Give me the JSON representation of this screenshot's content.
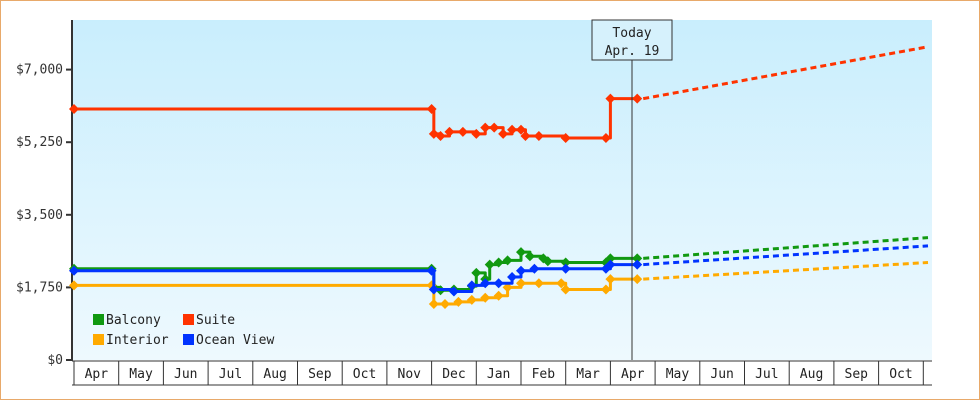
{
  "chart_data": {
    "type": "line",
    "title": "",
    "xlabel": "",
    "ylabel": "",
    "ylim": [
      0,
      8200
    ],
    "y_ticks": [
      "$0",
      "$1,750",
      "$3,500",
      "$5,250",
      "$7,000"
    ],
    "y_tick_values": [
      0,
      1750,
      3500,
      5250,
      7000
    ],
    "x_ticks": [
      "Apr",
      "May",
      "Jun",
      "Jul",
      "Aug",
      "Sep",
      "Oct",
      "Nov",
      "Dec",
      "Jan",
      "Feb",
      "Mar",
      "Apr",
      "May",
      "Jun",
      "Jul",
      "Aug",
      "Sep",
      "Oct"
    ],
    "grid": false,
    "legend_position": "lower-left inside plot",
    "today_marker": {
      "label_line1": "Today",
      "label_line2": "Apr. 19",
      "x_month_index": 12.6
    },
    "series": [
      {
        "name": "Balcony",
        "color": "#119911",
        "history": [
          [
            0,
            2200
          ],
          [
            8.0,
            2200
          ],
          [
            8.05,
            1750
          ],
          [
            8.2,
            1680
          ],
          [
            8.5,
            1700
          ],
          [
            8.9,
            1780
          ],
          [
            9.0,
            2100
          ],
          [
            9.2,
            1950
          ],
          [
            9.3,
            2300
          ],
          [
            9.5,
            2350
          ],
          [
            9.7,
            2400
          ],
          [
            10.0,
            2600
          ],
          [
            10.2,
            2500
          ],
          [
            10.5,
            2450
          ],
          [
            10.6,
            2380
          ],
          [
            11.0,
            2350
          ],
          [
            11.9,
            2350
          ],
          [
            12.0,
            2450
          ],
          [
            12.6,
            2450
          ]
        ],
        "forecast": [
          [
            12.6,
            2450
          ],
          [
            19,
            2950
          ]
        ]
      },
      {
        "name": "Suite",
        "color": "#ff3300",
        "history": [
          [
            0,
            6050
          ],
          [
            8.0,
            6050
          ],
          [
            8.05,
            5450
          ],
          [
            8.2,
            5400
          ],
          [
            8.4,
            5500
          ],
          [
            8.7,
            5500
          ],
          [
            9.0,
            5450
          ],
          [
            9.2,
            5600
          ],
          [
            9.4,
            5600
          ],
          [
            9.6,
            5450
          ],
          [
            9.8,
            5550
          ],
          [
            10.0,
            5550
          ],
          [
            10.1,
            5400
          ],
          [
            10.4,
            5400
          ],
          [
            11.0,
            5350
          ],
          [
            11.9,
            5350
          ],
          [
            12.0,
            6300
          ],
          [
            12.6,
            6300
          ]
        ],
        "forecast": [
          [
            12.6,
            6300
          ],
          [
            19,
            7550
          ]
        ]
      },
      {
        "name": "Interior",
        "color": "#ffaa00",
        "history": [
          [
            0,
            1800
          ],
          [
            8.0,
            1800
          ],
          [
            8.05,
            1350
          ],
          [
            8.3,
            1350
          ],
          [
            8.6,
            1400
          ],
          [
            8.9,
            1450
          ],
          [
            9.2,
            1500
          ],
          [
            9.5,
            1550
          ],
          [
            9.7,
            1750
          ],
          [
            10.0,
            1850
          ],
          [
            10.4,
            1850
          ],
          [
            10.9,
            1850
          ],
          [
            11.0,
            1700
          ],
          [
            11.9,
            1700
          ],
          [
            12.0,
            1950
          ],
          [
            12.6,
            1950
          ]
        ],
        "forecast": [
          [
            12.6,
            1950
          ],
          [
            19,
            2350
          ]
        ]
      },
      {
        "name": "Ocean View",
        "color": "#0033ff",
        "history": [
          [
            0,
            2150
          ],
          [
            8.0,
            2150
          ],
          [
            8.05,
            1700
          ],
          [
            8.5,
            1650
          ],
          [
            8.9,
            1800
          ],
          [
            9.2,
            1850
          ],
          [
            9.5,
            1850
          ],
          [
            9.8,
            2000
          ],
          [
            10.0,
            2150
          ],
          [
            10.3,
            2200
          ],
          [
            11.0,
            2200
          ],
          [
            11.9,
            2200
          ],
          [
            12.0,
            2300
          ],
          [
            12.6,
            2300
          ]
        ],
        "forecast": [
          [
            12.6,
            2300
          ],
          [
            19,
            2750
          ]
        ]
      }
    ]
  },
  "legend": {
    "items": [
      {
        "label": "Balcony",
        "color": "#119911"
      },
      {
        "label": "Suite",
        "color": "#ff3300"
      },
      {
        "label": "Interior",
        "color": "#ffaa00"
      },
      {
        "label": "Ocean View",
        "color": "#0033ff"
      }
    ]
  },
  "today": {
    "line1": "Today",
    "line2": "Apr. 19"
  }
}
